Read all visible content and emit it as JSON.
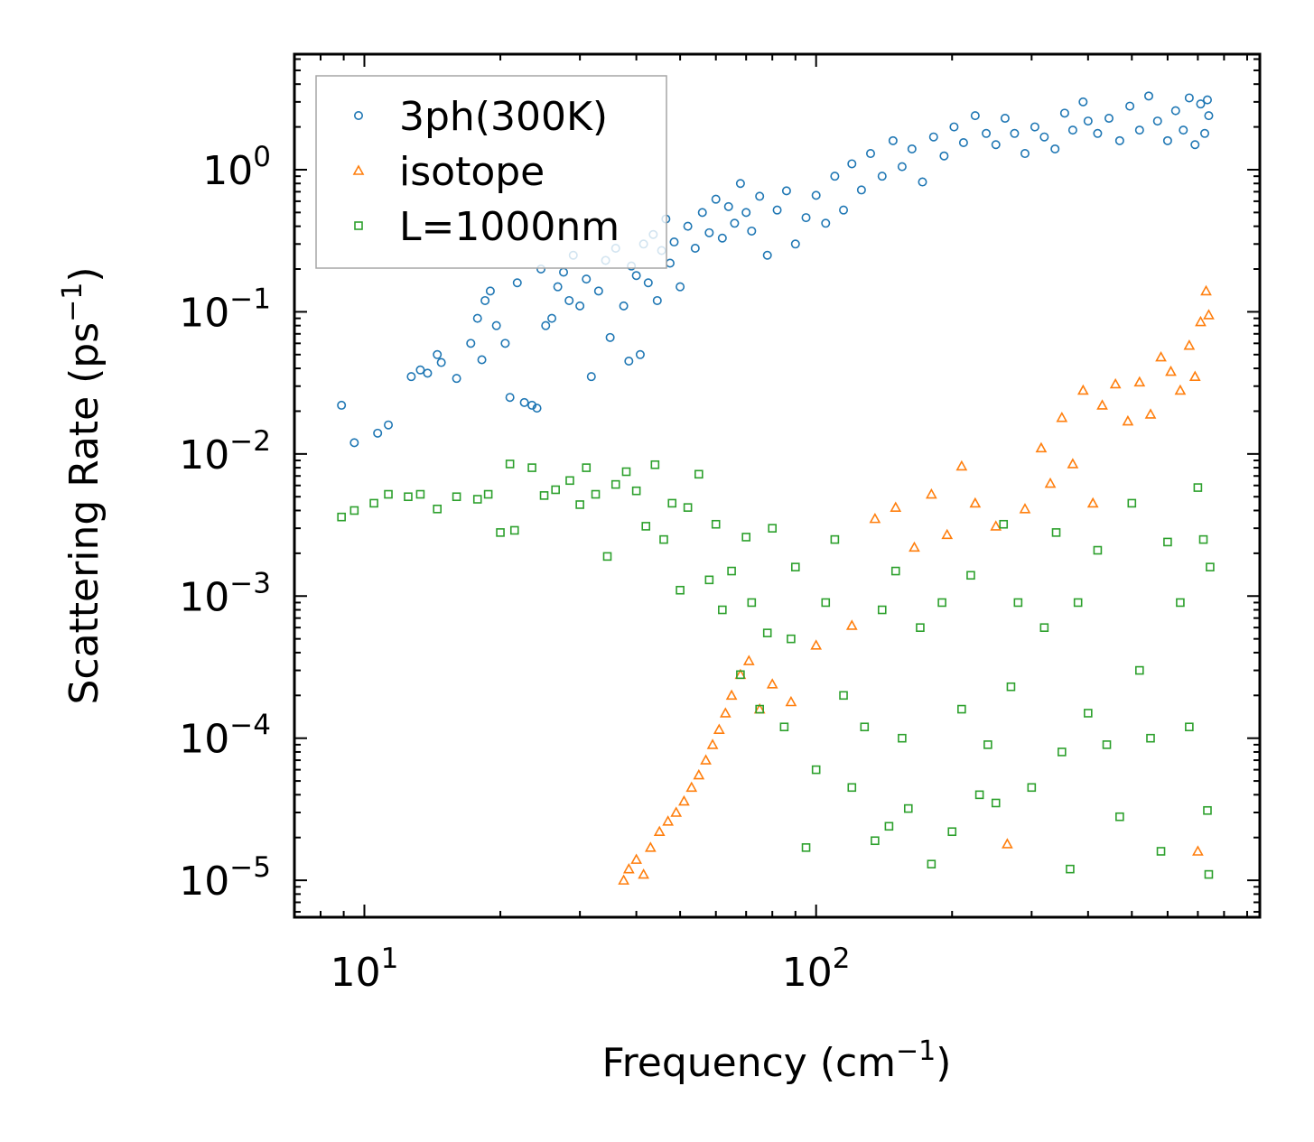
{
  "chart_data": {
    "type": "scatter",
    "title": "",
    "xlabel": "Frequency (cm",
    "xlabel_sup": "−1",
    "xlabel_end": ")",
    "ylabel": "Scattering Rate (ps",
    "ylabel_sup": "−1",
    "ylabel_end": ")",
    "xscale": "log",
    "yscale": "log",
    "xlim": [
      7.0,
      960
    ],
    "ylim": [
      5.5e-06,
      6.5
    ],
    "grid": false,
    "legend_position": "top-left",
    "xticks": [
      {
        "value": 10,
        "base": "10",
        "exp": "1"
      },
      {
        "value": 100,
        "base": "10",
        "exp": "2"
      }
    ],
    "yticks": [
      {
        "value": 1,
        "base": "10",
        "exp": "0"
      },
      {
        "value": 0.1,
        "base": "10",
        "exp": "−1"
      },
      {
        "value": 0.01,
        "base": "10",
        "exp": "−2"
      },
      {
        "value": 0.001,
        "base": "10",
        "exp": "−3"
      },
      {
        "value": 0.0001,
        "base": "10",
        "exp": "−4"
      },
      {
        "value": 1e-05,
        "base": "10",
        "exp": "−5"
      }
    ],
    "series": [
      {
        "name": "3ph(300K)",
        "marker": "circle",
        "color": "#1f77b4",
        "points": [
          [
            8.9,
            0.022
          ],
          [
            9.5,
            0.012
          ],
          [
            10.7,
            0.014
          ],
          [
            11.3,
            0.016
          ],
          [
            12.7,
            0.035
          ],
          [
            13.3,
            0.039
          ],
          [
            13.8,
            0.037
          ],
          [
            14.5,
            0.05
          ],
          [
            14.8,
            0.044
          ],
          [
            16,
            0.034
          ],
          [
            17.2,
            0.06
          ],
          [
            17.8,
            0.09
          ],
          [
            18.2,
            0.046
          ],
          [
            18.5,
            0.12
          ],
          [
            19,
            0.14
          ],
          [
            19.6,
            0.08
          ],
          [
            20.5,
            0.06
          ],
          [
            21,
            0.025
          ],
          [
            21.8,
            0.16
          ],
          [
            22.6,
            0.023
          ],
          [
            23.5,
            0.022
          ],
          [
            24.1,
            0.021
          ],
          [
            24.6,
            0.2
          ],
          [
            25.2,
            0.08
          ],
          [
            26,
            0.09
          ],
          [
            26.8,
            0.15
          ],
          [
            27.6,
            0.19
          ],
          [
            28.4,
            0.12
          ],
          [
            29,
            0.25
          ],
          [
            30,
            0.11
          ],
          [
            31,
            0.17
          ],
          [
            31.8,
            0.035
          ],
          [
            33,
            0.14
          ],
          [
            34.2,
            0.23
          ],
          [
            35,
            0.066
          ],
          [
            36,
            0.28
          ],
          [
            37.5,
            0.11
          ],
          [
            38.5,
            0.045
          ],
          [
            39,
            0.21
          ],
          [
            40,
            0.18
          ],
          [
            40.8,
            0.05
          ],
          [
            41.5,
            0.3
          ],
          [
            42.5,
            0.16
          ],
          [
            43.6,
            0.35
          ],
          [
            44.5,
            0.12
          ],
          [
            45.5,
            0.27
          ],
          [
            46.5,
            0.45
          ],
          [
            47.5,
            0.22
          ],
          [
            48.5,
            0.31
          ],
          [
            50,
            0.15
          ],
          [
            52,
            0.4
          ],
          [
            54,
            0.28
          ],
          [
            56,
            0.5
          ],
          [
            58,
            0.36
          ],
          [
            60,
            0.62
          ],
          [
            62,
            0.33
          ],
          [
            64,
            0.55
          ],
          [
            66,
            0.42
          ],
          [
            68,
            0.8
          ],
          [
            70,
            0.5
          ],
          [
            72,
            0.37
          ],
          [
            75,
            0.65
          ],
          [
            78,
            0.25
          ],
          [
            82,
            0.52
          ],
          [
            86,
            0.71
          ],
          [
            90,
            0.3
          ],
          [
            95,
            0.46
          ],
          [
            100,
            0.66
          ],
          [
            105,
            0.42
          ],
          [
            110,
            0.9
          ],
          [
            115,
            0.52
          ],
          [
            120,
            1.1
          ],
          [
            126,
            0.72
          ],
          [
            132,
            1.3
          ],
          [
            140,
            0.9
          ],
          [
            148,
            1.6
          ],
          [
            155,
            1.05
          ],
          [
            163,
            1.4
          ],
          [
            172,
            0.82
          ],
          [
            182,
            1.7
          ],
          [
            192,
            1.25
          ],
          [
            202,
            2.0
          ],
          [
            212,
            1.55
          ],
          [
            225,
            2.4
          ],
          [
            238,
            1.8
          ],
          [
            250,
            1.5
          ],
          [
            262,
            2.3
          ],
          [
            275,
            1.8
          ],
          [
            290,
            1.3
          ],
          [
            305,
            2.0
          ],
          [
            320,
            1.7
          ],
          [
            338,
            1.4
          ],
          [
            355,
            2.5
          ],
          [
            370,
            1.9
          ],
          [
            390,
            3.0
          ],
          [
            400,
            2.2
          ],
          [
            420,
            1.8
          ],
          [
            445,
            2.3
          ],
          [
            470,
            1.6
          ],
          [
            495,
            2.8
          ],
          [
            520,
            1.9
          ],
          [
            545,
            3.3
          ],
          [
            570,
            2.2
          ],
          [
            600,
            1.6
          ],
          [
            625,
            2.6
          ],
          [
            650,
            1.9
          ],
          [
            670,
            3.2
          ],
          [
            690,
            1.5
          ],
          [
            710,
            2.9
          ],
          [
            725,
            1.8
          ],
          [
            735,
            3.1
          ],
          [
            740,
            2.4
          ]
        ]
      },
      {
        "name": "isotope",
        "marker": "triangle",
        "color": "#ff7f0e",
        "points": [
          [
            37.5,
            1e-05
          ],
          [
            38.5,
            1.2e-05
          ],
          [
            40,
            1.4e-05
          ],
          [
            41.5,
            1.1e-05
          ],
          [
            43,
            1.7e-05
          ],
          [
            45,
            2.2e-05
          ],
          [
            47,
            2.6e-05
          ],
          [
            49,
            3e-05
          ],
          [
            51,
            3.6e-05
          ],
          [
            53,
            4.5e-05
          ],
          [
            55,
            5.5e-05
          ],
          [
            57,
            7e-05
          ],
          [
            59,
            9e-05
          ],
          [
            61,
            0.000115
          ],
          [
            63,
            0.00015
          ],
          [
            65,
            0.0002
          ],
          [
            68,
            0.00028
          ],
          [
            71,
            0.00035
          ],
          [
            75,
            0.00016
          ],
          [
            80,
            0.00024
          ],
          [
            88,
            0.00018
          ],
          [
            100,
            0.00045
          ],
          [
            120,
            0.00062
          ],
          [
            135,
            0.0035
          ],
          [
            150,
            0.0042
          ],
          [
            165,
            0.0022
          ],
          [
            180,
            0.0052
          ],
          [
            195,
            0.0027
          ],
          [
            210,
            0.0082
          ],
          [
            225,
            0.0045
          ],
          [
            250,
            0.0031
          ],
          [
            265,
            1.8e-05
          ],
          [
            290,
            0.0041
          ],
          [
            315,
            0.011
          ],
          [
            330,
            0.0062
          ],
          [
            350,
            0.018
          ],
          [
            370,
            0.0085
          ],
          [
            390,
            0.028
          ],
          [
            410,
            0.0045
          ],
          [
            430,
            0.022
          ],
          [
            460,
            0.031
          ],
          [
            490,
            0.017
          ],
          [
            520,
            0.032
          ],
          [
            550,
            0.019
          ],
          [
            580,
            0.048
          ],
          [
            610,
            0.038
          ],
          [
            640,
            0.028
          ],
          [
            670,
            0.058
          ],
          [
            690,
            0.035
          ],
          [
            710,
            0.085
          ],
          [
            730,
            0.14
          ],
          [
            740,
            0.095
          ],
          [
            700,
            1.6e-05
          ]
        ]
      },
      {
        "name": "L=1000nm",
        "marker": "square",
        "color": "#2ca02c",
        "points": [
          [
            8.9,
            0.0036
          ],
          [
            9.5,
            0.004
          ],
          [
            10.5,
            0.0045
          ],
          [
            11.3,
            0.0052
          ],
          [
            12.5,
            0.005
          ],
          [
            13.3,
            0.0052
          ],
          [
            14.5,
            0.0041
          ],
          [
            16,
            0.005
          ],
          [
            17.8,
            0.0048
          ],
          [
            18.8,
            0.0052
          ],
          [
            20,
            0.0028
          ],
          [
            21,
            0.0085
          ],
          [
            21.5,
            0.0029
          ],
          [
            23.5,
            0.008
          ],
          [
            25,
            0.0051
          ],
          [
            26.5,
            0.0056
          ],
          [
            28.5,
            0.0065
          ],
          [
            30,
            0.0044
          ],
          [
            31,
            0.008
          ],
          [
            32.5,
            0.0052
          ],
          [
            34.5,
            0.0019
          ],
          [
            36,
            0.0061
          ],
          [
            38,
            0.0075
          ],
          [
            40,
            0.0055
          ],
          [
            42,
            0.0031
          ],
          [
            44,
            0.0084
          ],
          [
            46,
            0.0025
          ],
          [
            48,
            0.0045
          ],
          [
            50,
            0.0011
          ],
          [
            52,
            0.0042
          ],
          [
            55,
            0.0072
          ],
          [
            58,
            0.0013
          ],
          [
            60,
            0.0032
          ],
          [
            62,
            0.0008
          ],
          [
            65,
            0.0015
          ],
          [
            68,
            0.00028
          ],
          [
            70,
            0.0026
          ],
          [
            72,
            0.0009
          ],
          [
            75,
            0.00016
          ],
          [
            78,
            0.00055
          ],
          [
            80,
            0.003
          ],
          [
            85,
            0.00012
          ],
          [
            88,
            0.0005
          ],
          [
            90,
            0.0016
          ],
          [
            95,
            1.7e-05
          ],
          [
            100,
            6e-05
          ],
          [
            105,
            0.0009
          ],
          [
            110,
            0.0025
          ],
          [
            115,
            0.0002
          ],
          [
            120,
            4.5e-05
          ],
          [
            128,
            0.00012
          ],
          [
            135,
            1.9e-05
          ],
          [
            140,
            0.0008
          ],
          [
            145,
            2.4e-05
          ],
          [
            150,
            0.0015
          ],
          [
            155,
            0.0001
          ],
          [
            160,
            3.2e-05
          ],
          [
            170,
            0.0006
          ],
          [
            180,
            1.3e-05
          ],
          [
            190,
            0.0009
          ],
          [
            200,
            2.2e-05
          ],
          [
            210,
            0.00016
          ],
          [
            220,
            0.0014
          ],
          [
            230,
            4e-05
          ],
          [
            240,
            9e-05
          ],
          [
            250,
            3.5e-05
          ],
          [
            260,
            0.0032
          ],
          [
            270,
            0.00023
          ],
          [
            280,
            0.0009
          ],
          [
            300,
            4.5e-05
          ],
          [
            320,
            0.0006
          ],
          [
            340,
            0.0028
          ],
          [
            350,
            8e-05
          ],
          [
            365,
            1.2e-05
          ],
          [
            380,
            0.0009
          ],
          [
            400,
            0.00015
          ],
          [
            420,
            0.0021
          ],
          [
            440,
            9e-05
          ],
          [
            470,
            2.8e-05
          ],
          [
            500,
            0.0045
          ],
          [
            520,
            0.0003
          ],
          [
            550,
            0.0001
          ],
          [
            580,
            1.6e-05
          ],
          [
            600,
            0.0024
          ],
          [
            640,
            0.0009
          ],
          [
            670,
            0.00012
          ],
          [
            700,
            0.0058
          ],
          [
            720,
            0.0025
          ],
          [
            735,
            3.1e-05
          ],
          [
            740,
            1.1e-05
          ],
          [
            745,
            0.0016
          ]
        ]
      }
    ]
  }
}
